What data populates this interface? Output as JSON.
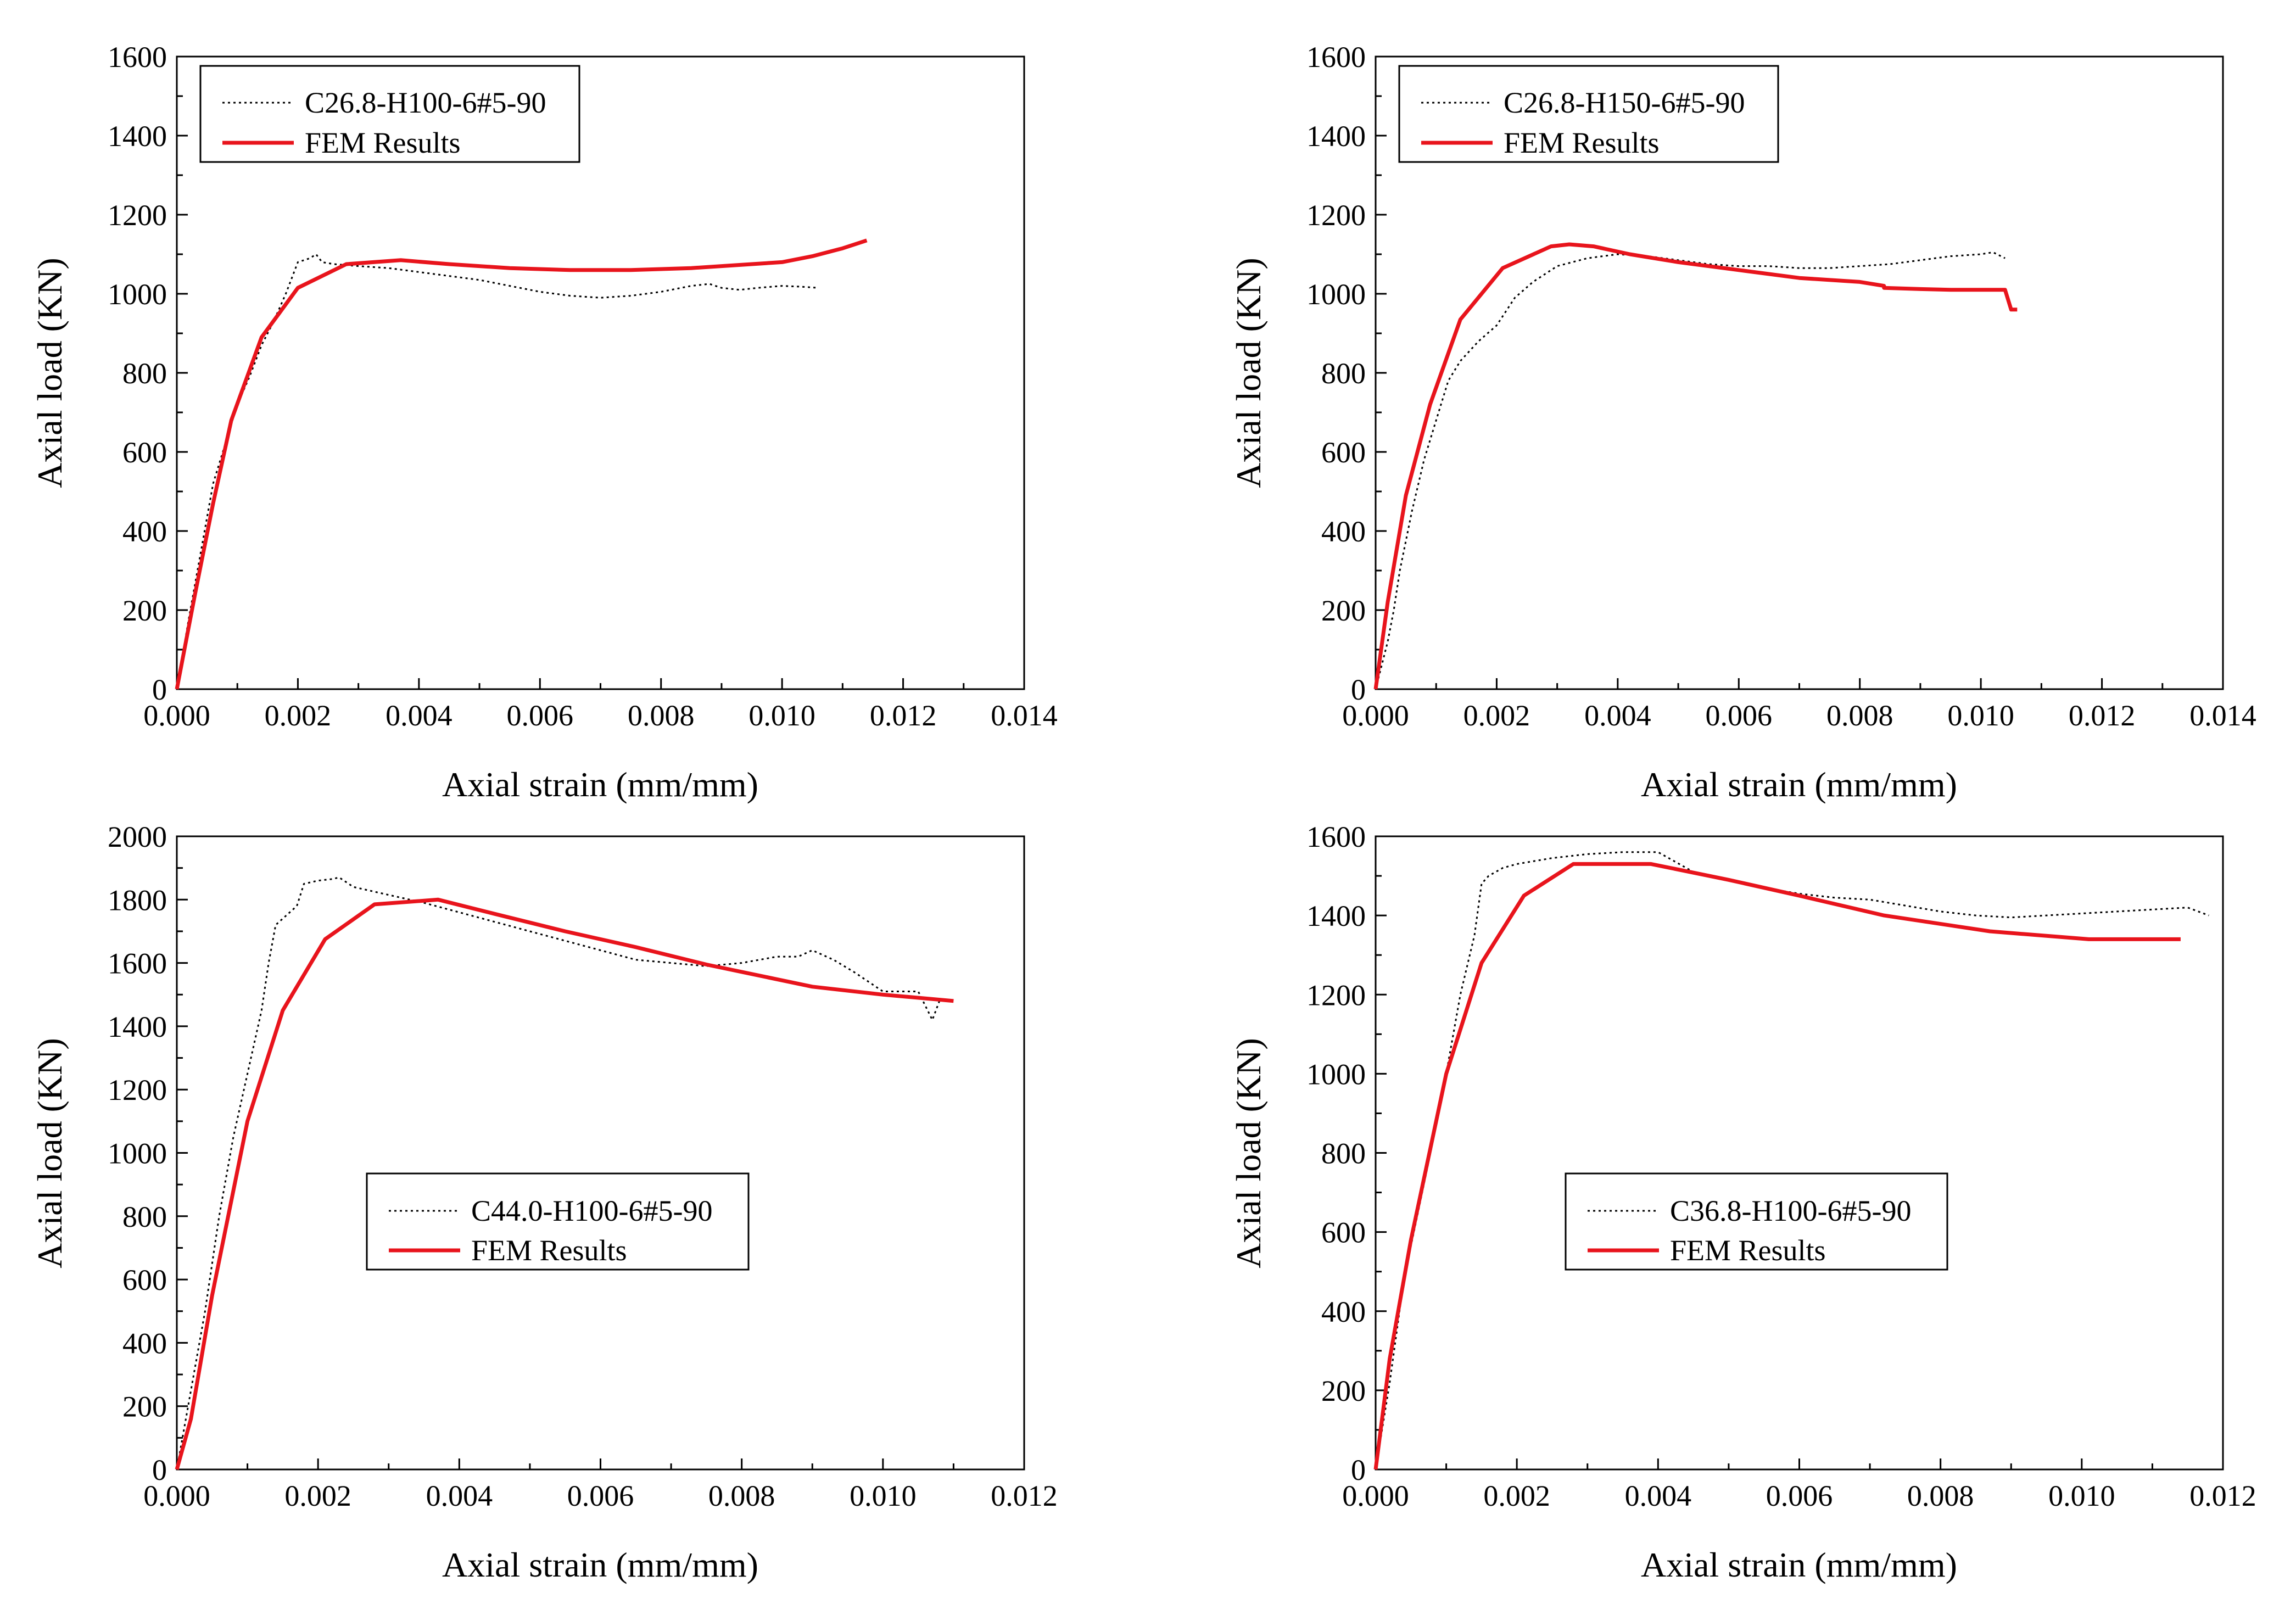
{
  "chart_data": [
    {
      "type": "line",
      "xlabel": "Axial strain (mm/mm)",
      "ylabel": "Axial load (KN)",
      "xlim": [
        0,
        0.014
      ],
      "ylim": [
        0,
        1600
      ],
      "xticks": [
        "0.000",
        "0.002",
        "0.004",
        "0.006",
        "0.008",
        "0.010",
        "0.012",
        "0.014"
      ],
      "yticks": [
        "0",
        "200",
        "400",
        "600",
        "800",
        "1000",
        "1200",
        "1400",
        "1600"
      ],
      "legend_position": "top-left",
      "series": [
        {
          "name": "C26.8-H100-6#5-90",
          "style": "dotted",
          "color": "#000000",
          "x": [
            0,
            0.0002,
            0.0004,
            0.0006,
            0.0008,
            0.001,
            0.0012,
            0.0014,
            0.0016,
            0.0018,
            0.002,
            0.0022,
            0.0023,
            0.0024,
            0.0026,
            0.003,
            0.0035,
            0.004,
            0.0045,
            0.005,
            0.0055,
            0.006,
            0.0065,
            0.007,
            0.0075,
            0.008,
            0.0085,
            0.0088,
            0.009,
            0.0093,
            0.0096,
            0.01,
            0.0103,
            0.0106
          ],
          "y": [
            0,
            180,
            350,
            520,
            620,
            720,
            790,
            870,
            930,
            1000,
            1080,
            1090,
            1100,
            1080,
            1075,
            1070,
            1065,
            1055,
            1045,
            1035,
            1020,
            1005,
            995,
            990,
            995,
            1005,
            1020,
            1025,
            1015,
            1010,
            1015,
            1020,
            1018,
            1015
          ]
        },
        {
          "name": "FEM Results",
          "style": "solid",
          "color": "#e8141c",
          "x": [
            0,
            0.0003,
            0.0006,
            0.0009,
            0.0014,
            0.002,
            0.0028,
            0.0037,
            0.0045,
            0.0055,
            0.0065,
            0.0075,
            0.0085,
            0.0095,
            0.01,
            0.0105,
            0.011,
            0.0114
          ],
          "y": [
            0,
            240,
            470,
            680,
            890,
            1015,
            1075,
            1085,
            1075,
            1065,
            1060,
            1060,
            1065,
            1075,
            1080,
            1095,
            1115,
            1135
          ]
        }
      ]
    },
    {
      "type": "line",
      "xlabel": "Axial strain (mm/mm)",
      "ylabel": "Axial load (KN)",
      "xlim": [
        0,
        0.014
      ],
      "ylim": [
        0,
        1600
      ],
      "xticks": [
        "0.000",
        "0.002",
        "0.004",
        "0.006",
        "0.008",
        "0.010",
        "0.012",
        "0.014"
      ],
      "yticks": [
        "0",
        "200",
        "400",
        "600",
        "800",
        "1000",
        "1200",
        "1400",
        "1600"
      ],
      "legend_position": "top-left",
      "series": [
        {
          "name": "C26.8-H150-6#5-90",
          "style": "dotted",
          "color": "#000000",
          "x": [
            0,
            0.0002,
            0.0003,
            0.0004,
            0.0006,
            0.0008,
            0.001,
            0.0012,
            0.0014,
            0.0017,
            0.002,
            0.0023,
            0.0026,
            0.003,
            0.0035,
            0.004,
            0.0045,
            0.005,
            0.0055,
            0.006,
            0.0065,
            0.007,
            0.0075,
            0.008,
            0.0085,
            0.009,
            0.0095,
            0.01,
            0.0102,
            0.0104
          ],
          "y": [
            0,
            120,
            200,
            300,
            450,
            580,
            680,
            780,
            830,
            880,
            920,
            990,
            1030,
            1070,
            1090,
            1100,
            1095,
            1085,
            1075,
            1070,
            1070,
            1065,
            1065,
            1070,
            1075,
            1085,
            1095,
            1100,
            1105,
            1090
          ]
        },
        {
          "name": "FEM Results",
          "style": "solid",
          "color": "#e8141c",
          "x": [
            0,
            0.0002,
            0.0005,
            0.0009,
            0.0014,
            0.0021,
            0.0029,
            0.0032,
            0.0036,
            0.0042,
            0.005,
            0.006,
            0.007,
            0.008,
            0.0084,
            0.0084,
            0.009,
            0.0095,
            0.01,
            0.0104,
            0.0104,
            0.0105,
            0.0106
          ],
          "y": [
            0,
            220,
            490,
            720,
            935,
            1065,
            1120,
            1125,
            1120,
            1100,
            1080,
            1060,
            1040,
            1030,
            1020,
            1015,
            1012,
            1010,
            1010,
            1010,
            1010,
            960,
            960
          ]
        }
      ]
    },
    {
      "type": "line",
      "xlabel": "Axial strain (mm/mm)",
      "ylabel": "Axial load (KN)",
      "xlim": [
        0,
        0.012
      ],
      "ylim": [
        0,
        2000
      ],
      "xticks": [
        "0.000",
        "0.002",
        "0.004",
        "0.006",
        "0.008",
        "0.010",
        "0.012"
      ],
      "yticks": [
        "0",
        "200",
        "400",
        "600",
        "800",
        "1000",
        "1200",
        "1400",
        "1600",
        "1800",
        "2000"
      ],
      "legend_position": "center",
      "series": [
        {
          "name": "C44.0-H100-6#5-90",
          "style": "dotted",
          "color": "#000000",
          "x": [
            0,
            0.0002,
            0.0004,
            0.0006,
            0.0008,
            0.001,
            0.0012,
            0.0013,
            0.0014,
            0.0016,
            0.0017,
            0.0018,
            0.002,
            0.0022,
            0.0023,
            0.0025,
            0.003,
            0.0035,
            0.004,
            0.005,
            0.006,
            0.0065,
            0.007,
            0.0075,
            0.008,
            0.0085,
            0.0088,
            0.009,
            0.0093,
            0.0096,
            0.01,
            0.0105,
            0.0107,
            0.0108
          ],
          "y": [
            0,
            250,
            500,
            800,
            1050,
            1250,
            1450,
            1600,
            1720,
            1760,
            1780,
            1850,
            1860,
            1865,
            1870,
            1840,
            1815,
            1790,
            1760,
            1700,
            1640,
            1610,
            1600,
            1590,
            1600,
            1620,
            1620,
            1640,
            1610,
            1570,
            1510,
            1510,
            1420,
            1480
          ]
        },
        {
          "name": "FEM Results",
          "style": "solid",
          "color": "#e8141c",
          "x": [
            0,
            0.0002,
            0.0005,
            0.001,
            0.0015,
            0.0021,
            0.0028,
            0.0037,
            0.0045,
            0.0055,
            0.0065,
            0.0075,
            0.009,
            0.01,
            0.011
          ],
          "y": [
            0,
            160,
            550,
            1100,
            1450,
            1675,
            1785,
            1800,
            1755,
            1700,
            1650,
            1595,
            1525,
            1500,
            1480
          ]
        }
      ]
    },
    {
      "type": "line",
      "xlabel": "Axial strain (mm/mm)",
      "ylabel": "Axial load (KN)",
      "xlim": [
        0,
        0.012
      ],
      "ylim": [
        0,
        1600
      ],
      "xticks": [
        "0.000",
        "0.002",
        "0.004",
        "0.006",
        "0.008",
        "0.010",
        "0.012"
      ],
      "yticks": [
        "0",
        "200",
        "400",
        "600",
        "800",
        "1000",
        "1200",
        "1400",
        "1600"
      ],
      "legend_position": "center",
      "series": [
        {
          "name": "C36.8-H100-6#5-90",
          "style": "dotted",
          "color": "#000000",
          "x": [
            0,
            0.0002,
            0.0004,
            0.0006,
            0.0008,
            0.001,
            0.0012,
            0.0014,
            0.0015,
            0.0016,
            0.0018,
            0.002,
            0.0025,
            0.003,
            0.0035,
            0.004,
            0.0042,
            0.0045,
            0.005,
            0.0055,
            0.006,
            0.0065,
            0.007,
            0.0075,
            0.008,
            0.0085,
            0.009,
            0.0095,
            0.01,
            0.0105,
            0.011,
            0.0115,
            0.0118
          ],
          "y": [
            0,
            220,
            480,
            650,
            820,
            1000,
            1200,
            1350,
            1480,
            1500,
            1520,
            1530,
            1545,
            1555,
            1560,
            1560,
            1540,
            1510,
            1490,
            1470,
            1455,
            1445,
            1440,
            1425,
            1410,
            1400,
            1395,
            1400,
            1405,
            1410,
            1415,
            1420,
            1400
          ]
        },
        {
          "name": "FEM Results",
          "style": "solid",
          "color": "#e8141c",
          "x": [
            0,
            0.0002,
            0.0005,
            0.001,
            0.0015,
            0.0021,
            0.0028,
            0.0039,
            0.005,
            0.006,
            0.0072,
            0.0087,
            0.0101,
            0.0114
          ],
          "y": [
            0,
            280,
            580,
            1000,
            1280,
            1450,
            1530,
            1530,
            1490,
            1450,
            1400,
            1360,
            1340,
            1340
          ]
        }
      ]
    }
  ]
}
